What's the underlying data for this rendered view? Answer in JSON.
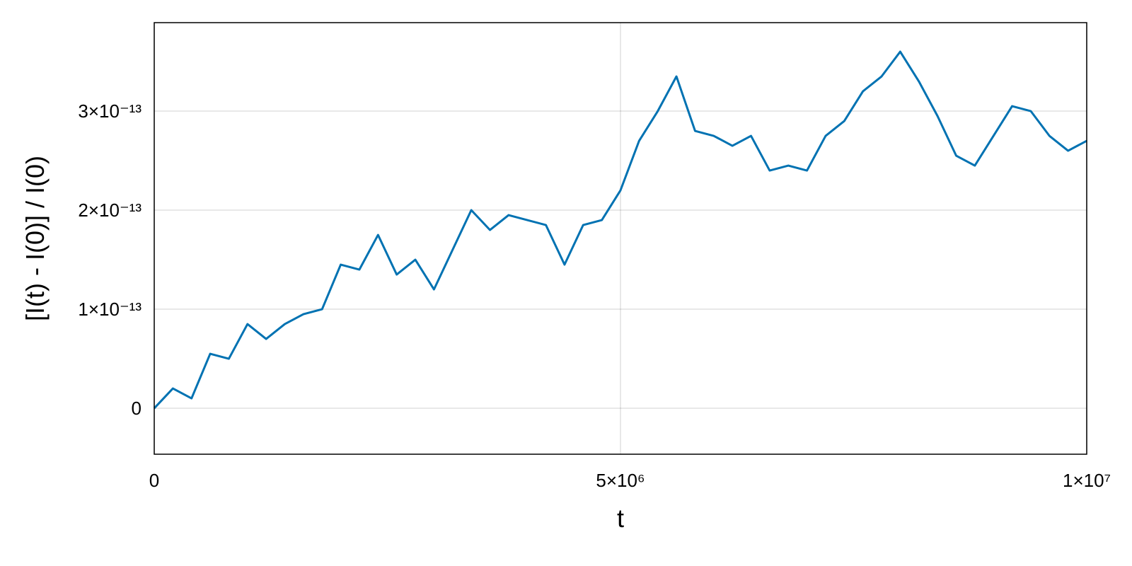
{
  "chart_data": {
    "type": "line",
    "xlabel": "t",
    "ylabel": "[I(t) - I(0)] / I(0)",
    "grid": true,
    "xlim": [
      0,
      10000000
    ],
    "ylim": [
      -4.64e-14,
      3.893e-13
    ],
    "xticks": [
      0,
      {
        "value": 5000000,
        "label": "5×10⁶"
      },
      {
        "value": 10000000,
        "label": "1×10⁷"
      }
    ],
    "yticks": [
      0,
      {
        "value": 1e-13,
        "label": "1×10⁻¹³"
      },
      {
        "value": 2e-13,
        "label": "2×10⁻¹³"
      },
      {
        "value": 3e-13,
        "label": "3×10⁻¹³"
      }
    ],
    "x": [
      0,
      200000,
      400000,
      600000,
      800000,
      1000000,
      1200000,
      1400000,
      1600000,
      1800000,
      2000000,
      2200000,
      2400000,
      2600000,
      2800000,
      3000000,
      3200000,
      3400000,
      3600000,
      3800000,
      4000000,
      4200000,
      4400000,
      4600000,
      4800000,
      5000000,
      5200000,
      5400000,
      5600000,
      5800000,
      6000000,
      6200000,
      6400000,
      6600000,
      6800000,
      7000000,
      7200000,
      7400000,
      7600000,
      7800000,
      8000000,
      8200000,
      8400000,
      8600000,
      8800000,
      9000000,
      9200000,
      9400000,
      9600000,
      9800000,
      10000000
    ],
    "series": [
      {
        "name": "I",
        "color": "#0072b2",
        "values": [
          0,
          2e-14,
          1e-14,
          5.5e-14,
          5e-14,
          8.5e-14,
          7e-14,
          8.5e-14,
          9.5e-14,
          1e-13,
          1.45e-13,
          1.4e-13,
          1.75e-13,
          1.35e-13,
          1.5e-13,
          1.2e-13,
          1.6e-13,
          2e-13,
          1.8e-13,
          1.95e-13,
          1.9e-13,
          1.85e-13,
          1.45e-13,
          1.85e-13,
          1.9e-13,
          2.2e-13,
          2.7e-13,
          3e-13,
          3.35e-13,
          2.8e-13,
          2.75e-13,
          2.65e-13,
          2.75e-13,
          2.4e-13,
          2.45e-13,
          2.4e-13,
          2.75e-13,
          2.9e-13,
          3.2e-13,
          3.35e-13,
          3.6e-13,
          3.3e-13,
          2.95e-13,
          2.55e-13,
          2.45e-13,
          2.75e-13,
          3.05e-13,
          3e-13,
          2.75e-13,
          2.6e-13,
          2.7e-13
        ]
      }
    ]
  }
}
